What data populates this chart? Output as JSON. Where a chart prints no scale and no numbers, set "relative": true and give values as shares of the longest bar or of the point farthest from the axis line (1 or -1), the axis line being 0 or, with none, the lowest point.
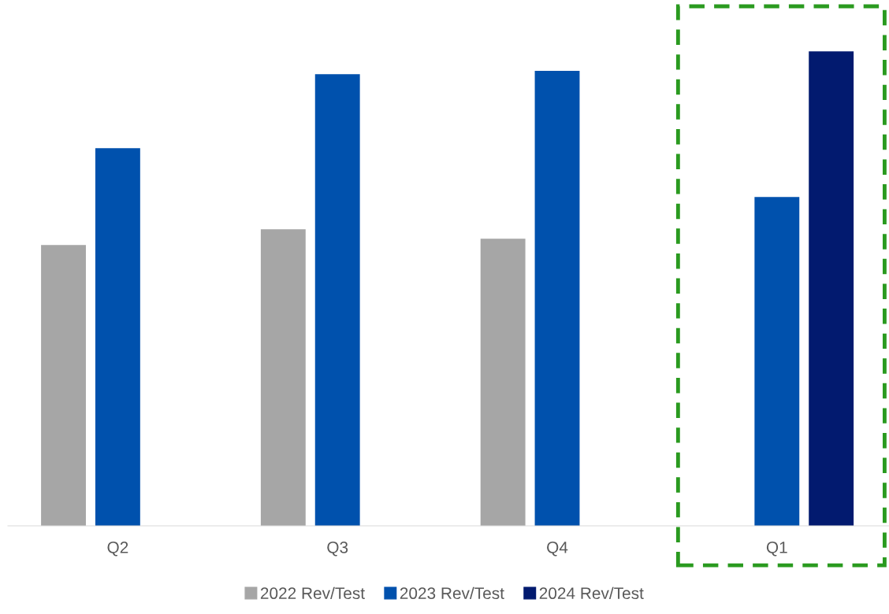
{
  "chart_data": {
    "type": "bar",
    "relative": true,
    "categories": [
      "Q2",
      "Q3",
      "Q4",
      "Q1"
    ],
    "series": [
      {
        "name": "2022 Rev/Test",
        "color": "#a6a6a6",
        "values": [
          0.592,
          0.625,
          0.605,
          null
        ]
      },
      {
        "name": "2023 Rev/Test",
        "color": "#0051ad",
        "values": [
          0.796,
          0.952,
          0.959,
          0.693
        ]
      },
      {
        "name": "2024 Rev/Test",
        "color": "#021a6f",
        "values": [
          null,
          null,
          null,
          1.0
        ]
      }
    ],
    "legend": "bottom",
    "grid": false
  }
}
